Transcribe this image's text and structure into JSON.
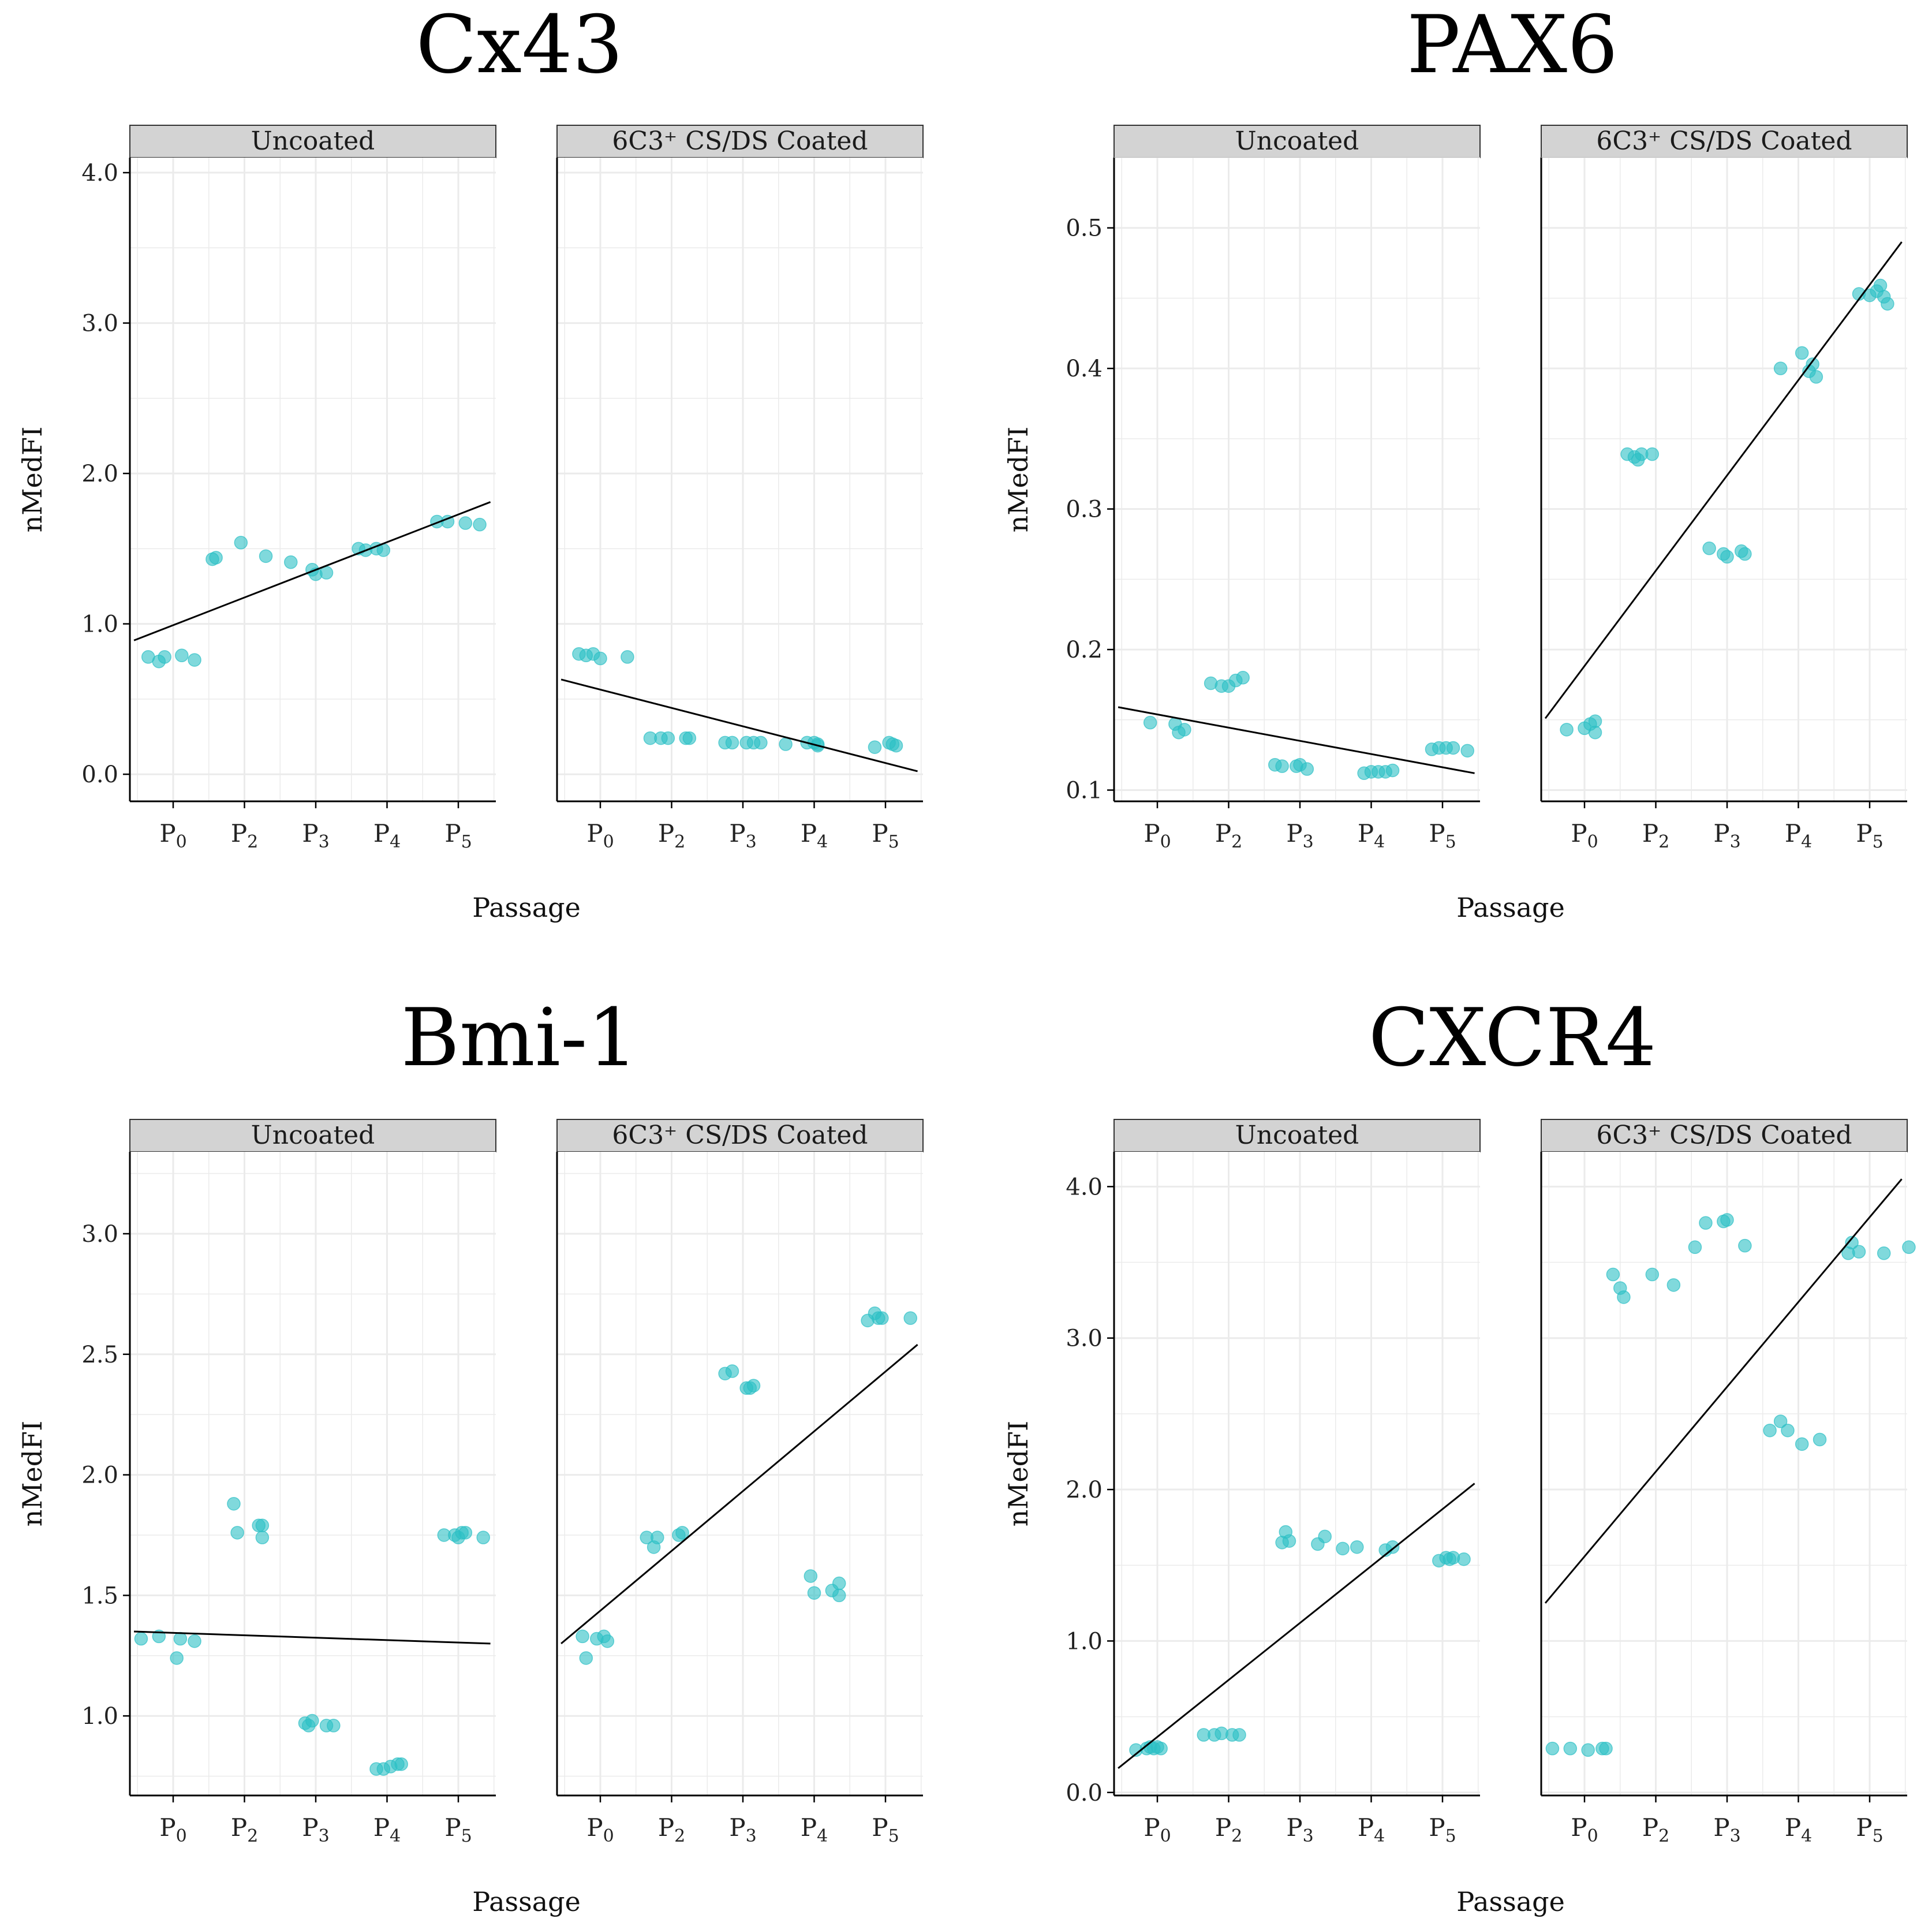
{
  "figure": {
    "axis_ylabel": "nMedFI",
    "axis_xlabel": "Passage",
    "point_color": "#2bbfc4",
    "facet_strip_fill": "#d3d3d3",
    "grid_color": "#ebebeb",
    "line_color": "#000000"
  },
  "chart_data": [
    {
      "type": "scatter",
      "title": "Cx43",
      "xlabel": "Passage",
      "ylabel": "nMedFI",
      "grid": true,
      "x_categories": [
        "P0",
        "P2",
        "P3",
        "P4",
        "P5"
      ],
      "ylim": [
        -0.18,
        4.1
      ],
      "yticks": [
        0.0,
        1.0,
        2.0,
        3.0,
        4.0
      ],
      "ytick_labels": [
        "0.0",
        "1.0",
        "2.0",
        "3.0",
        "4.0"
      ],
      "facets": [
        {
          "name": "Uncoated",
          "trend": {
            "x_start": -0.55,
            "y_start": 0.89,
            "x_end": 4.45,
            "y_end": 1.81
          },
          "points": [
            [
              -0.35,
              0.78
            ],
            [
              -0.2,
              0.75
            ],
            [
              -0.12,
              0.78
            ],
            [
              0.12,
              0.79
            ],
            [
              0.3,
              0.76
            ],
            [
              0.55,
              1.43
            ],
            [
              0.6,
              1.44
            ],
            [
              0.95,
              1.54
            ],
            [
              1.3,
              1.45
            ],
            [
              1.65,
              1.41
            ],
            [
              1.95,
              1.36
            ],
            [
              2.0,
              1.33
            ],
            [
              2.15,
              1.34
            ],
            [
              2.6,
              1.5
            ],
            [
              2.7,
              1.49
            ],
            [
              2.85,
              1.5
            ],
            [
              2.95,
              1.49
            ],
            [
              3.7,
              1.68
            ],
            [
              3.85,
              1.68
            ],
            [
              4.1,
              1.67
            ],
            [
              4.3,
              1.66
            ]
          ]
        },
        {
          "name": "6C3⁺ CS/DS Coated",
          "trend": {
            "x_start": -0.55,
            "y_start": 0.63,
            "x_end": 4.45,
            "y_end": 0.02
          },
          "points": [
            [
              -0.3,
              0.8
            ],
            [
              -0.2,
              0.79
            ],
            [
              -0.1,
              0.8
            ],
            [
              0.0,
              0.77
            ],
            [
              0.38,
              0.78
            ],
            [
              0.7,
              0.24
            ],
            [
              0.85,
              0.24
            ],
            [
              0.95,
              0.24
            ],
            [
              1.2,
              0.24
            ],
            [
              1.25,
              0.24
            ],
            [
              1.75,
              0.21
            ],
            [
              1.85,
              0.21
            ],
            [
              2.05,
              0.21
            ],
            [
              2.15,
              0.21
            ],
            [
              2.25,
              0.21
            ],
            [
              2.6,
              0.2
            ],
            [
              2.9,
              0.21
            ],
            [
              3.0,
              0.21
            ],
            [
              3.05,
              0.2
            ],
            [
              3.05,
              0.19
            ],
            [
              3.85,
              0.18
            ],
            [
              4.05,
              0.21
            ],
            [
              4.1,
              0.2
            ],
            [
              4.15,
              0.19
            ]
          ]
        }
      ]
    },
    {
      "type": "scatter",
      "title": "PAX6",
      "xlabel": "Passage",
      "ylabel": "nMedFI",
      "grid": true,
      "x_categories": [
        "P0",
        "P2",
        "P3",
        "P4",
        "P5"
      ],
      "ylim": [
        0.092,
        0.55
      ],
      "yticks": [
        0.1,
        0.2,
        0.3,
        0.4,
        0.5
      ],
      "ytick_labels": [
        "0.1",
        "0.2",
        "0.3",
        "0.4",
        "0.5"
      ],
      "facets": [
        {
          "name": "Uncoated",
          "trend": {
            "x_start": -0.55,
            "y_start": 0.159,
            "x_end": 4.45,
            "y_end": 0.112
          },
          "points": [
            [
              -0.1,
              0.148
            ],
            [
              0.25,
              0.147
            ],
            [
              0.3,
              0.141
            ],
            [
              0.38,
              0.143
            ],
            [
              0.75,
              0.176
            ],
            [
              0.9,
              0.174
            ],
            [
              1.0,
              0.174
            ],
            [
              1.1,
              0.178
            ],
            [
              1.2,
              0.18
            ],
            [
              1.65,
              0.118
            ],
            [
              1.75,
              0.117
            ],
            [
              1.95,
              0.117
            ],
            [
              2.0,
              0.118
            ],
            [
              2.1,
              0.115
            ],
            [
              2.9,
              0.112
            ],
            [
              3.0,
              0.113
            ],
            [
              3.1,
              0.113
            ],
            [
              3.2,
              0.113
            ],
            [
              3.3,
              0.114
            ],
            [
              3.85,
              0.129
            ],
            [
              3.95,
              0.13
            ],
            [
              4.05,
              0.13
            ],
            [
              4.15,
              0.13
            ],
            [
              4.35,
              0.128
            ]
          ]
        },
        {
          "name": "6C3⁺ CS/DS Coated",
          "trend": {
            "x_start": -0.55,
            "y_start": 0.151,
            "x_end": 4.45,
            "y_end": 0.49
          },
          "points": [
            [
              -0.25,
              0.143
            ],
            [
              0.0,
              0.144
            ],
            [
              0.08,
              0.147
            ],
            [
              0.15,
              0.149
            ],
            [
              0.15,
              0.141
            ],
            [
              0.6,
              0.339
            ],
            [
              0.7,
              0.337
            ],
            [
              0.75,
              0.335
            ],
            [
              0.8,
              0.339
            ],
            [
              0.95,
              0.339
            ],
            [
              1.75,
              0.272
            ],
            [
              1.95,
              0.268
            ],
            [
              2.0,
              0.266
            ],
            [
              2.2,
              0.27
            ],
            [
              2.25,
              0.268
            ],
            [
              2.75,
              0.4
            ],
            [
              3.05,
              0.411
            ],
            [
              3.15,
              0.398
            ],
            [
              3.2,
              0.403
            ],
            [
              3.25,
              0.394
            ],
            [
              3.85,
              0.453
            ],
            [
              4.0,
              0.452
            ],
            [
              4.1,
              0.455
            ],
            [
              4.15,
              0.459
            ],
            [
              4.2,
              0.451
            ],
            [
              4.25,
              0.446
            ]
          ]
        }
      ]
    },
    {
      "type": "scatter",
      "title": "Bmi-1",
      "xlabel": "Passage",
      "ylabel": "nMedFI",
      "grid": true,
      "x_categories": [
        "P0",
        "P2",
        "P3",
        "P4",
        "P5"
      ],
      "ylim": [
        0.67,
        3.34
      ],
      "yticks": [
        1.0,
        1.5,
        2.0,
        2.5,
        3.0
      ],
      "ytick_labels": [
        "1.0",
        "1.5",
        "2.0",
        "2.5",
        "3.0"
      ],
      "facets": [
        {
          "name": "Uncoated",
          "trend": {
            "x_start": -0.55,
            "y_start": 1.35,
            "x_end": 4.45,
            "y_end": 1.3
          },
          "points": [
            [
              -0.45,
              1.32
            ],
            [
              -0.2,
              1.33
            ],
            [
              0.05,
              1.24
            ],
            [
              0.1,
              1.32
            ],
            [
              0.3,
              1.31
            ],
            [
              0.85,
              1.88
            ],
            [
              0.9,
              1.76
            ],
            [
              1.2,
              1.79
            ],
            [
              1.25,
              1.74
            ],
            [
              1.25,
              1.79
            ],
            [
              1.85,
              0.97
            ],
            [
              1.9,
              0.96
            ],
            [
              1.95,
              0.98
            ],
            [
              2.15,
              0.96
            ],
            [
              2.25,
              0.96
            ],
            [
              2.85,
              0.78
            ],
            [
              2.95,
              0.78
            ],
            [
              3.05,
              0.79
            ],
            [
              3.15,
              0.8
            ],
            [
              3.2,
              0.8
            ],
            [
              3.8,
              1.75
            ],
            [
              3.95,
              1.75
            ],
            [
              4.0,
              1.74
            ],
            [
              4.05,
              1.76
            ],
            [
              4.1,
              1.76
            ],
            [
              4.35,
              1.74
            ]
          ]
        },
        {
          "name": "6C3⁺ CS/DS Coated",
          "trend": {
            "x_start": -0.55,
            "y_start": 1.3,
            "x_end": 4.45,
            "y_end": 2.54
          },
          "points": [
            [
              -0.25,
              1.33
            ],
            [
              -0.2,
              1.24
            ],
            [
              -0.05,
              1.32
            ],
            [
              0.05,
              1.33
            ],
            [
              0.1,
              1.31
            ],
            [
              0.65,
              1.74
            ],
            [
              0.75,
              1.7
            ],
            [
              0.8,
              1.74
            ],
            [
              1.1,
              1.75
            ],
            [
              1.15,
              1.76
            ],
            [
              1.75,
              2.42
            ],
            [
              1.85,
              2.43
            ],
            [
              2.05,
              2.36
            ],
            [
              2.1,
              2.36
            ],
            [
              2.15,
              2.37
            ],
            [
              2.95,
              1.58
            ],
            [
              3.0,
              1.51
            ],
            [
              3.25,
              1.52
            ],
            [
              3.35,
              1.55
            ],
            [
              3.35,
              1.5
            ],
            [
              3.75,
              2.64
            ],
            [
              3.85,
              2.67
            ],
            [
              3.9,
              2.65
            ],
            [
              3.95,
              2.65
            ],
            [
              4.35,
              2.65
            ]
          ]
        }
      ]
    },
    {
      "type": "scatter",
      "title": "CXCR4",
      "xlabel": "Passage",
      "ylabel": "nMedFI",
      "grid": true,
      "x_categories": [
        "P0",
        "P2",
        "P3",
        "P4",
        "P5"
      ],
      "ylim": [
        -0.02,
        4.23
      ],
      "yticks": [
        0.0,
        1.0,
        2.0,
        3.0,
        4.0
      ],
      "ytick_labels": [
        "0.0",
        "1.0",
        "2.0",
        "3.0",
        "4.0"
      ],
      "facets": [
        {
          "name": "Uncoated",
          "trend": {
            "x_start": -0.55,
            "y_start": 0.16,
            "x_end": 4.45,
            "y_end": 2.04
          },
          "points": [
            [
              -0.3,
              0.28
            ],
            [
              -0.15,
              0.29
            ],
            [
              -0.1,
              0.3
            ],
            [
              -0.05,
              0.29
            ],
            [
              0.0,
              0.3
            ],
            [
              0.05,
              0.29
            ],
            [
              0.65,
              0.38
            ],
            [
              0.8,
              0.38
            ],
            [
              0.9,
              0.39
            ],
            [
              1.05,
              0.38
            ],
            [
              1.15,
              0.38
            ],
            [
              1.8,
              1.72
            ],
            [
              1.75,
              1.65
            ],
            [
              1.85,
              1.66
            ],
            [
              2.25,
              1.64
            ],
            [
              2.35,
              1.69
            ],
            [
              2.6,
              1.61
            ],
            [
              2.8,
              1.62
            ],
            [
              3.2,
              1.6
            ],
            [
              3.3,
              1.62
            ],
            [
              3.95,
              1.53
            ],
            [
              4.05,
              1.55
            ],
            [
              4.1,
              1.54
            ],
            [
              4.15,
              1.55
            ],
            [
              4.3,
              1.54
            ]
          ]
        },
        {
          "name": "6C3⁺ CS/DS Coated",
          "trend": {
            "x_start": -0.55,
            "y_start": 1.25,
            "x_end": 4.45,
            "y_end": 4.05
          },
          "points": [
            [
              -0.45,
              0.29
            ],
            [
              -0.2,
              0.29
            ],
            [
              0.05,
              0.28
            ],
            [
              0.25,
              0.29
            ],
            [
              0.3,
              0.29
            ],
            [
              0.4,
              3.42
            ],
            [
              0.5,
              3.33
            ],
            [
              0.55,
              3.27
            ],
            [
              0.95,
              3.42
            ],
            [
              1.25,
              3.35
            ],
            [
              1.55,
              3.6
            ],
            [
              1.7,
              3.76
            ],
            [
              1.95,
              3.77
            ],
            [
              2.0,
              3.78
            ],
            [
              2.25,
              3.61
            ],
            [
              2.6,
              2.39
            ],
            [
              2.75,
              2.45
            ],
            [
              2.85,
              2.39
            ],
            [
              3.05,
              2.3
            ],
            [
              3.3,
              2.33
            ],
            [
              3.75,
              3.63
            ],
            [
              3.7,
              3.56
            ],
            [
              3.85,
              3.57
            ],
            [
              4.2,
              3.56
            ],
            [
              4.55,
              3.6
            ]
          ]
        }
      ]
    }
  ]
}
